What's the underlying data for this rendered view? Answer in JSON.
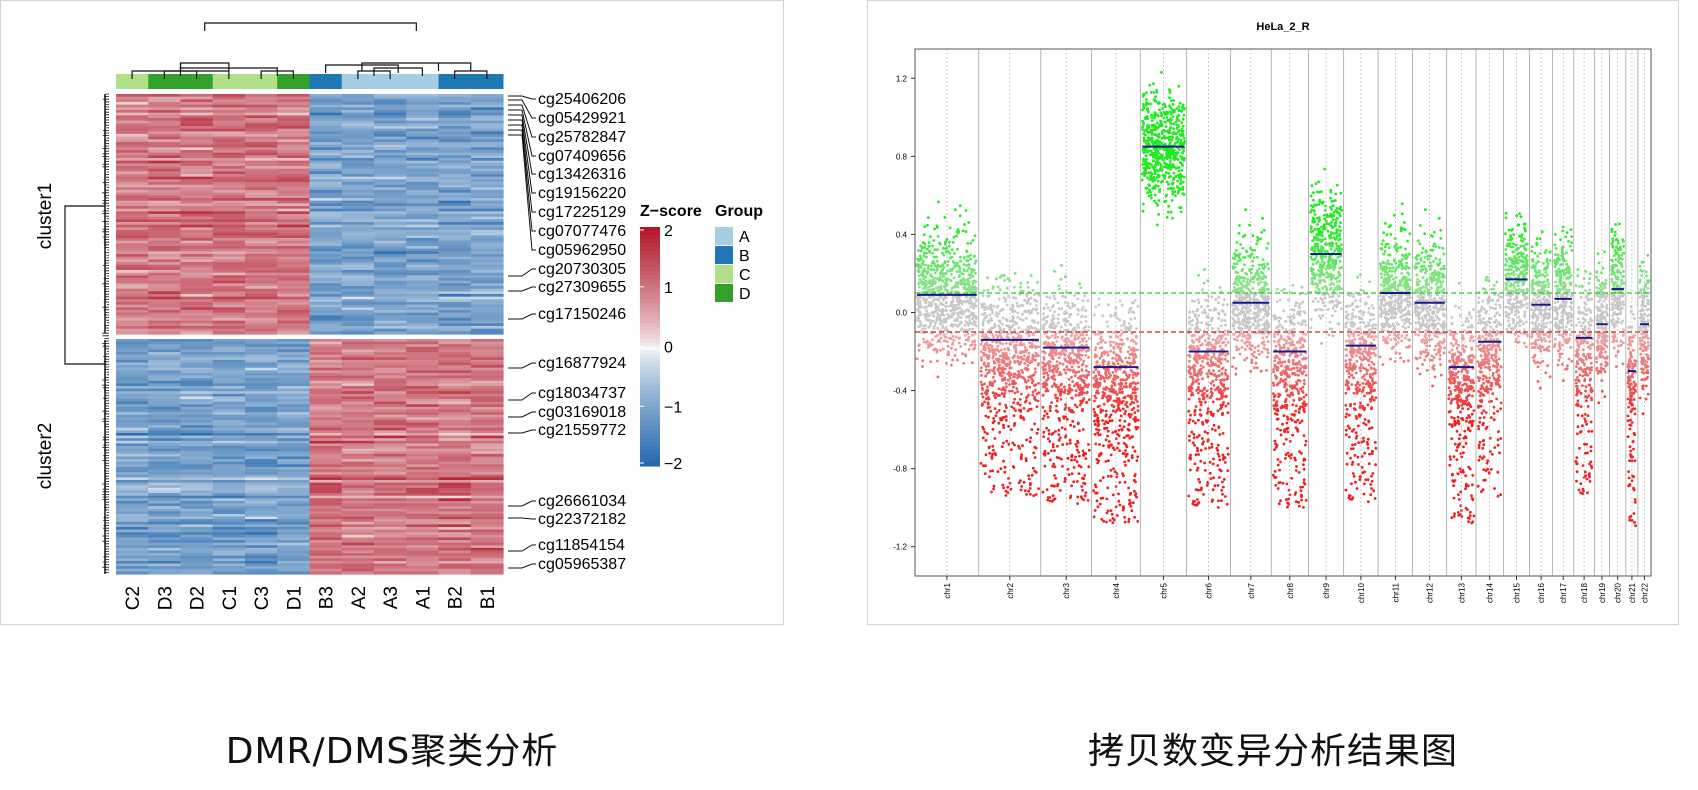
{
  "captions": {
    "left": "DMR/DMS聚类分析",
    "right": "拷贝数变异分析结果图"
  },
  "heatmap": {
    "columns": [
      "C2",
      "D3",
      "D2",
      "C1",
      "C3",
      "D1",
      "B3",
      "A2",
      "A3",
      "A1",
      "B2",
      "B1"
    ],
    "column_groups": [
      "C",
      "D",
      "D",
      "C",
      "C",
      "D",
      "B",
      "A",
      "A",
      "A",
      "B",
      "B"
    ],
    "row_clusters": [
      "cluster1",
      "cluster2"
    ],
    "probes": [
      "cg25406206",
      "cg05429921",
      "cg25782847",
      "cg07409656",
      "cg13426316",
      "cg19156220",
      "cg17225129",
      "cg07077476",
      "cg05962950",
      "cg20730305",
      "cg27309655",
      "cg17150246",
      "cg16877924",
      "cg18034737",
      "cg03169018",
      "cg21559772",
      "cg26661034",
      "cg22372182",
      "cg11854154",
      "cg05965387"
    ],
    "colorbar": {
      "title": "Z−score",
      "ticks": [
        "2",
        "1",
        "0",
        "−1",
        "−2"
      ]
    },
    "legend": {
      "title": "Group",
      "items": [
        {
          "label": "A",
          "color": "#a6cee3"
        },
        {
          "label": "B",
          "color": "#1f78b4"
        },
        {
          "label": "C",
          "color": "#b2df8a"
        },
        {
          "label": "D",
          "color": "#33a02c"
        }
      ]
    }
  },
  "chart_data": [
    {
      "type": "heatmap",
      "title": "",
      "x": [
        "C2",
        "D3",
        "D2",
        "C1",
        "C3",
        "D1",
        "B3",
        "A2",
        "A3",
        "A1",
        "B2",
        "B1"
      ],
      "groups": {
        "C2": "C",
        "D3": "D",
        "D2": "D",
        "C1": "C",
        "C3": "C",
        "D1": "D",
        "B3": "B",
        "A2": "A",
        "A3": "A",
        "A1": "A",
        "B2": "B",
        "B1": "B"
      },
      "row_clusters": [
        {
          "name": "cluster1",
          "groups_C_D_zscore": 1.0,
          "groups_A_B_zscore": -1.0
        },
        {
          "name": "cluster2",
          "groups_C_D_zscore": -1.0,
          "groups_A_B_zscore": 1.0
        }
      ],
      "zlim": [
        -2,
        2
      ],
      "colors": {
        "low": "#2166ac",
        "mid": "#f7f7f7",
        "high": "#b2182b"
      }
    },
    {
      "type": "scatter",
      "title": "HeLa_2_R",
      "xlabel": "",
      "ylabel": "",
      "ylim": [
        -1.35,
        1.35
      ],
      "yticks": [
        "1.2",
        "0.8",
        "0.4",
        "0.0",
        "-0.4",
        "-0.8",
        "-1.2"
      ],
      "gain_threshold": 0.1,
      "loss_threshold": -0.1,
      "chromosomes": [
        "chr1",
        "chr2",
        "chr3",
        "chr4",
        "chr5",
        "chr6",
        "chr7",
        "chr8",
        "chr9",
        "chr10",
        "chr11",
        "chr12",
        "chr13",
        "chr14",
        "chr15",
        "chr16",
        "chr17",
        "chr18",
        "chr19",
        "chr20",
        "chr21",
        "chr22"
      ],
      "segment_means": [
        0.09,
        -0.14,
        -0.18,
        -0.28,
        0.85,
        -0.2,
        0.05,
        -0.2,
        0.3,
        -0.17,
        0.1,
        0.05,
        -0.28,
        -0.15,
        0.17,
        0.04,
        0.07,
        -0.13,
        -0.06,
        0.12,
        -0.3,
        -0.06
      ],
      "colors": {
        "gain": "#22dd22",
        "loss": "#ee2222",
        "neutral": "#c8c8c8",
        "segment": "#1a1a8c"
      }
    }
  ]
}
